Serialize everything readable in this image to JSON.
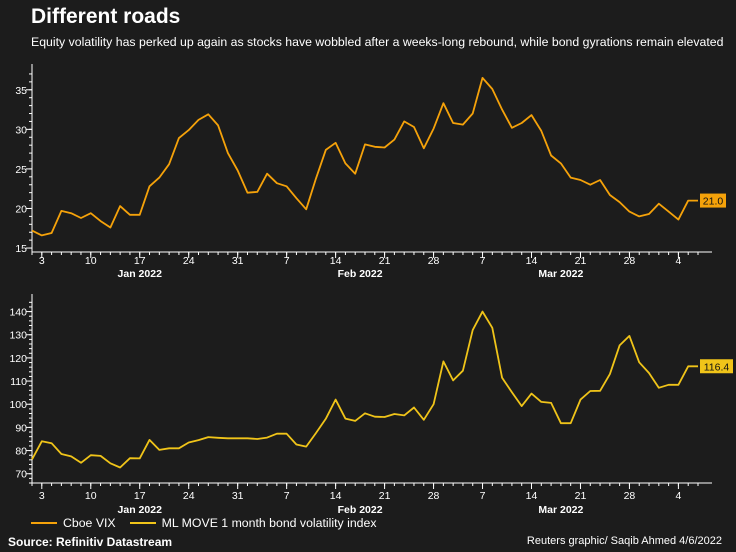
{
  "header": {
    "title": "Different roads",
    "subtitle": "Equity volatility has perked up again as stocks have wobbled after a weeks-long rebound, while bond gyrations remain elevated"
  },
  "legend": {
    "vix_label": "Cboe VIX",
    "move_label": "ML MOVE 1 month bond volatility index"
  },
  "footer": {
    "source": "Source: Refinitiv Datastream",
    "credit": "Reuters graphic/ Saqib Ahmed 4/6/2022"
  },
  "colors": {
    "vix": "#f5a20a",
    "move": "#f0c419",
    "background": "#1c1c1c",
    "axis": "#ffffff"
  },
  "chart_data": [
    {
      "type": "line",
      "series": [
        {
          "name": "Cboe VIX",
          "values": [
            17.2,
            16.6,
            16.9,
            19.7,
            19.4,
            18.8,
            19.4,
            18.4,
            17.6,
            20.3,
            19.2,
            19.2,
            22.8,
            23.9,
            25.6,
            28.9,
            29.9,
            31.2,
            31.9,
            30.5,
            27.0,
            24.8,
            22.0,
            22.1,
            24.4,
            23.2,
            22.8,
            21.3,
            19.9,
            23.8,
            27.4,
            28.3,
            25.7,
            24.4,
            28.1,
            27.8,
            27.7,
            28.7,
            31.0,
            30.3,
            27.6,
            30.1,
            33.3,
            30.8,
            30.6,
            32.0,
            36.5,
            35.1,
            32.5,
            30.2,
            30.8,
            31.8,
            29.8,
            26.7,
            25.7,
            23.9,
            23.6,
            23.0,
            23.6,
            21.7,
            20.8,
            19.6,
            19.0,
            19.3,
            20.6,
            19.6,
            18.6,
            21.0,
            21.0
          ],
          "last_label": "21.0",
          "ylim": [
            14.5,
            37.5
          ],
          "yticks": [
            15,
            20,
            25,
            30,
            35
          ]
        }
      ],
      "x_ticks": [
        "3",
        "10",
        "17",
        "24",
        "31",
        "7",
        "14",
        "21",
        "28",
        "7",
        "14",
        "21",
        "28",
        "4"
      ],
      "months": [
        "Jan 2022",
        "Feb 2022",
        "Mar 2022"
      ]
    },
    {
      "type": "line",
      "series": [
        {
          "name": "ML MOVE 1 month bond volatility index",
          "values": [
            76.2,
            84.0,
            83.2,
            78.5,
            77.5,
            74.7,
            78.0,
            77.7,
            74.5,
            72.7,
            76.7,
            76.6,
            84.6,
            80.3,
            81.0,
            81.0,
            83.5,
            84.5,
            85.8,
            85.5,
            85.3,
            85.3,
            85.3,
            85.0,
            85.6,
            87.3,
            87.3,
            82.6,
            81.7,
            87.6,
            93.7,
            102.0,
            93.8,
            92.8,
            96.1,
            94.6,
            94.5,
            95.8,
            95.2,
            98.6,
            93.3,
            100.0,
            118.5,
            110.3,
            114.5,
            132.0,
            140.0,
            133.0,
            111.4,
            105.2,
            99.2,
            104.6,
            101.0,
            100.6,
            91.8,
            91.8,
            102.0,
            105.7,
            105.8,
            113.0,
            125.4,
            129.5,
            118.1,
            113.5,
            107.1,
            108.4,
            108.4,
            116.4,
            116.4
          ],
          "last_label": "116.4",
          "ylim": [
            66,
            145
          ],
          "yticks": [
            70,
            80,
            90,
            100,
            110,
            120,
            130,
            140
          ]
        }
      ],
      "x_ticks": [
        "3",
        "10",
        "17",
        "24",
        "31",
        "7",
        "14",
        "21",
        "28",
        "7",
        "14",
        "21",
        "28",
        "4"
      ],
      "months": [
        "Jan 2022",
        "Feb 2022",
        "Mar 2022"
      ]
    }
  ]
}
